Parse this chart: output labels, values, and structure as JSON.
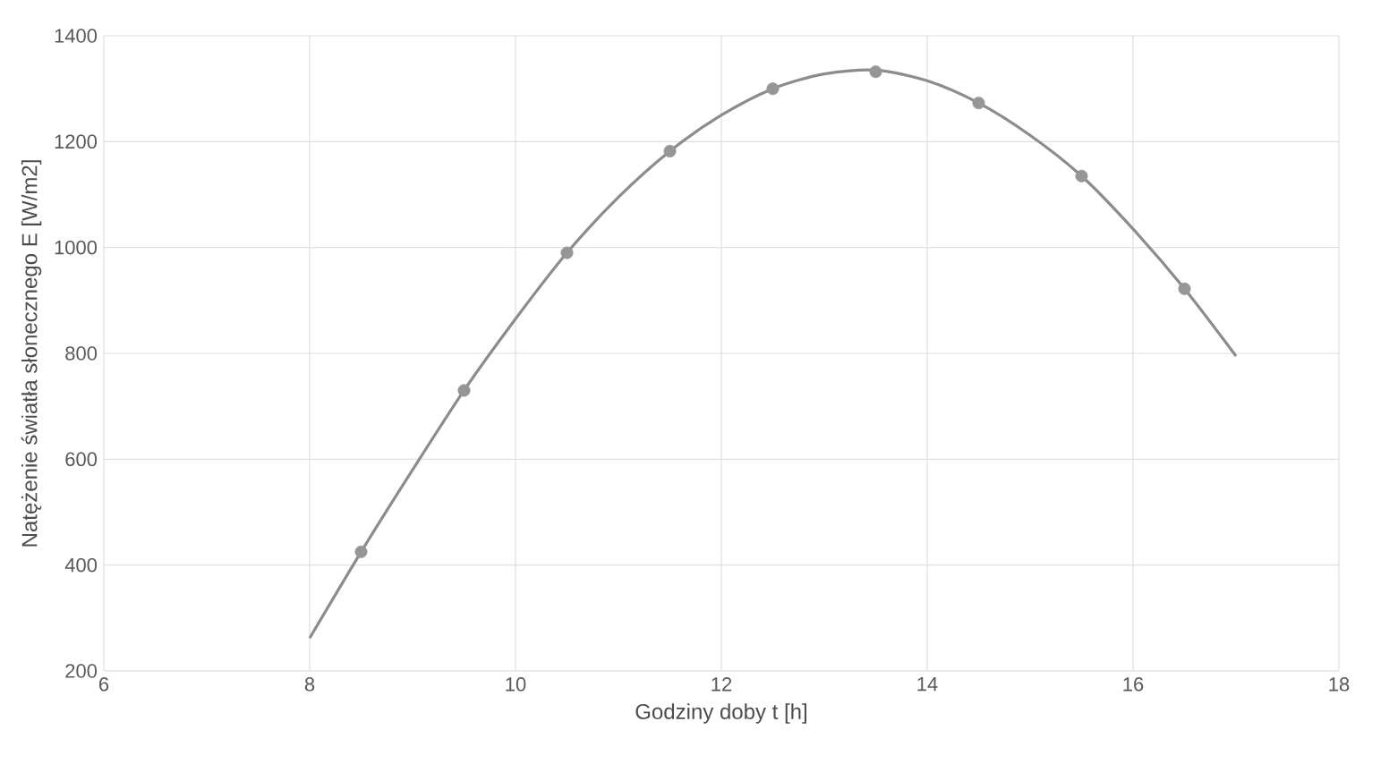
{
  "chart_data": {
    "type": "scatter",
    "xlabel": "Godziny doby t [h]",
    "ylabel": "Natężenie światła słonecznego E [W/m2]",
    "xlim": [
      6,
      18
    ],
    "xticks": [
      6,
      8,
      10,
      12,
      14,
      16,
      18
    ],
    "ylim": [
      200,
      1400
    ],
    "yticks": [
      200,
      400,
      600,
      800,
      1000,
      1200,
      1400
    ],
    "grid": true,
    "series": [
      {
        "type": "line",
        "marker": "none",
        "color": "#8c8c8c",
        "x": [
          8,
          8.5,
          9,
          9.5,
          10,
          10.5,
          11,
          11.5,
          12,
          12.5,
          13,
          13.5,
          14,
          14.5,
          15,
          15.5,
          16,
          16.5,
          17
        ],
        "values": [
          262,
          425,
          580,
          730,
          865,
          990,
          1095,
          1182,
          1250,
          1300,
          1328,
          1335,
          1315,
          1273,
          1212,
          1135,
          1035,
          922,
          795
        ]
      },
      {
        "marker": "circle",
        "color": "#969696",
        "x": [
          8.5,
          9.5,
          10.5,
          11.5,
          12.5,
          13.5,
          14.5,
          15.5,
          16.5
        ],
        "values": [
          425,
          730,
          990,
          1182,
          1300,
          1332,
          1273,
          1135,
          922
        ]
      }
    ]
  }
}
